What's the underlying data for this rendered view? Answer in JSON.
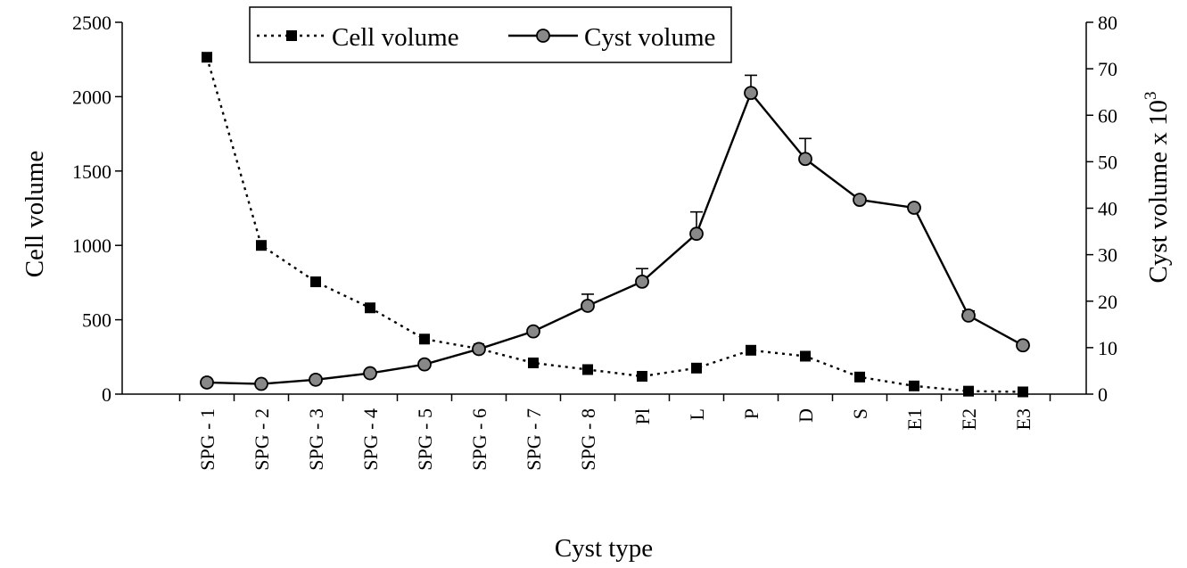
{
  "chart_data": {
    "type": "line",
    "title": "",
    "xlabel": "Cyst type",
    "ylabel": "Cell volume",
    "ylabel_right": "Cyst volume x 10",
    "ylabel_right_superscript": "3",
    "categories": [
      "SPG - 1",
      "SPG - 2",
      "SPG - 3",
      "SPG - 4",
      "SPG - 5",
      "SPG - 6",
      "SPG - 7",
      "SPG - 8",
      "Pl",
      "L",
      "P",
      "D",
      "S",
      "E1",
      "E2",
      "E3"
    ],
    "ylim": [
      0,
      2500
    ],
    "yticks": [
      "0",
      "500",
      "1000",
      "1500",
      "2000",
      "2500"
    ],
    "ylim_right": [
      0,
      80
    ],
    "yticks_right": [
      "0",
      "10",
      "20",
      "30",
      "40",
      "50",
      "60",
      "70",
      "80"
    ],
    "legend_position": "top-center",
    "grid": false,
    "series": [
      {
        "name": "Cell volume",
        "axis": "left",
        "style": "dotted",
        "marker": "square",
        "color": "#000000",
        "values": [
          2265,
          1000,
          755,
          580,
          370,
          305,
          210,
          165,
          120,
          175,
          295,
          255,
          115,
          55,
          20,
          15
        ]
      },
      {
        "name": "Cyst volume",
        "axis": "right",
        "style": "solid",
        "marker": "circle",
        "color": "#000000",
        "marker_fill": "#888888",
        "values": [
          2.5,
          2.2,
          3.1,
          4.5,
          6.4,
          9.7,
          13.5,
          19.0,
          24.2,
          34.5,
          64.8,
          50.6,
          41.8,
          40.1,
          16.9,
          10.5
        ],
        "error_plus": [
          0,
          0,
          0,
          0,
          0,
          0,
          0,
          2.5,
          2.8,
          4.7,
          3.8,
          4.4,
          0,
          0,
          1.0,
          0
        ]
      }
    ]
  }
}
